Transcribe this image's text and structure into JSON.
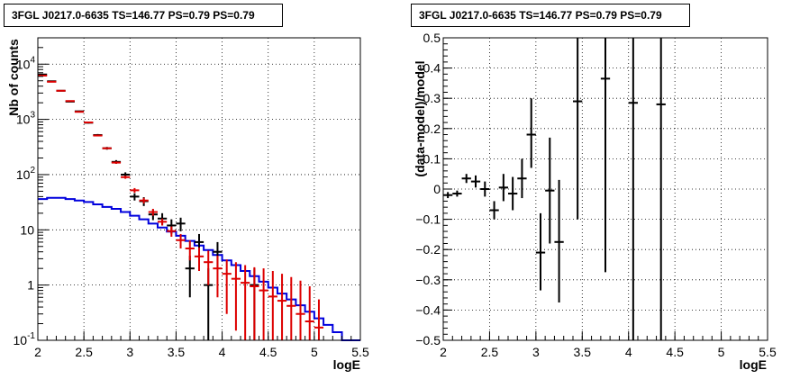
{
  "chart_data": [
    {
      "type": "line",
      "title": "3FGL J0217.0-6635 TS=146.77 PS=0.79 PS=0.79",
      "xlabel": "logE",
      "ylabel": "Nb of counts",
      "xlim": [
        2,
        5.5
      ],
      "ylim": [
        0.1,
        30000
      ],
      "yscale": "log",
      "grid": true,
      "x_ticks": [
        "2",
        "2.5",
        "3",
        "3.5",
        "4",
        "4.5",
        "5",
        "5.5"
      ],
      "y_ticks": [
        {
          "base": "10",
          "exp": "-1",
          "value": 0.1
        },
        {
          "base": "1",
          "exp": "",
          "value": 1
        },
        {
          "base": "10",
          "exp": "",
          "value": 10
        },
        {
          "base": "10",
          "exp": "2",
          "value": 100
        },
        {
          "base": "10",
          "exp": "3",
          "value": 1000
        },
        {
          "base": "10",
          "exp": "4",
          "value": 10000
        }
      ],
      "series": [
        {
          "role": "data",
          "color": "#000000",
          "points": [
            {
              "x": 2.05,
              "y": 6500,
              "lo": 6420,
              "hi": 6580
            },
            {
              "x": 2.15,
              "y": 4900,
              "lo": 4830,
              "hi": 4970
            },
            {
              "x": 2.25,
              "y": 3300,
              "lo": 3240,
              "hi": 3360
            },
            {
              "x": 2.35,
              "y": 2100,
              "lo": 2055,
              "hi": 2145
            },
            {
              "x": 2.45,
              "y": 1400,
              "lo": 1360,
              "hi": 1440
            },
            {
              "x": 2.55,
              "y": 870,
              "lo": 840,
              "hi": 900
            },
            {
              "x": 2.65,
              "y": 520,
              "lo": 497,
              "hi": 543
            },
            {
              "x": 2.75,
              "y": 300,
              "lo": 283,
              "hi": 317
            },
            {
              "x": 2.85,
              "y": 170,
              "lo": 157,
              "hi": 183
            },
            {
              "x": 2.95,
              "y": 100,
              "lo": 90,
              "hi": 110
            },
            {
              "x": 3.05,
              "y": 40,
              "lo": 34,
              "hi": 46
            },
            {
              "x": 3.15,
              "y": 33,
              "lo": 27,
              "hi": 39
            },
            {
              "x": 3.25,
              "y": 19,
              "lo": 15,
              "hi": 23
            },
            {
              "x": 3.35,
              "y": 16,
              "lo": 12,
              "hi": 20
            },
            {
              "x": 3.45,
              "y": 12,
              "lo": 8.5,
              "hi": 15.5
            },
            {
              "x": 3.55,
              "y": 13,
              "lo": 9.4,
              "hi": 16.6
            },
            {
              "x": 3.65,
              "y": 2,
              "lo": 0.6,
              "hi": 3.4
            },
            {
              "x": 3.75,
              "y": 6,
              "lo": 3.6,
              "hi": 8.4
            },
            {
              "x": 3.85,
              "y": 1,
              "lo": 0.1,
              "hi": 2
            },
            {
              "x": 3.95,
              "y": 4,
              "lo": 2,
              "hi": 6
            },
            {
              "x": 4.35,
              "y": 1,
              "lo": 0.1,
              "hi": 2
            }
          ]
        },
        {
          "role": "model",
          "color": "#dd0000",
          "points": [
            {
              "x": 2.05,
              "y": 6200,
              "lo": 6100,
              "hi": 6300
            },
            {
              "x": 2.15,
              "y": 4800,
              "lo": 4720,
              "hi": 4880
            },
            {
              "x": 2.25,
              "y": 3300,
              "lo": 3250,
              "hi": 3350
            },
            {
              "x": 2.35,
              "y": 2150,
              "lo": 2110,
              "hi": 2190
            },
            {
              "x": 2.45,
              "y": 1370,
              "lo": 1340,
              "hi": 1400
            },
            {
              "x": 2.55,
              "y": 880,
              "lo": 860,
              "hi": 900
            },
            {
              "x": 2.65,
              "y": 510,
              "lo": 495,
              "hi": 525
            },
            {
              "x": 2.75,
              "y": 300,
              "lo": 290,
              "hi": 310
            },
            {
              "x": 2.85,
              "y": 165,
              "lo": 157,
              "hi": 173
            },
            {
              "x": 2.95,
              "y": 90,
              "lo": 84,
              "hi": 96
            },
            {
              "x": 3.05,
              "y": 52,
              "lo": 47,
              "hi": 57
            },
            {
              "x": 3.15,
              "y": 34,
              "lo": 30,
              "hi": 38
            },
            {
              "x": 3.25,
              "y": 21,
              "lo": 18,
              "hi": 24
            },
            {
              "x": 3.35,
              "y": 14,
              "lo": 12,
              "hi": 16
            },
            {
              "x": 3.45,
              "y": 9.5,
              "lo": 7.5,
              "hi": 11.5
            },
            {
              "x": 3.55,
              "y": 6.5,
              "lo": 4.6,
              "hi": 8.4
            },
            {
              "x": 3.65,
              "y": 4.6,
              "lo": 2.8,
              "hi": 6.4
            },
            {
              "x": 3.75,
              "y": 3.3,
              "lo": 1.8,
              "hi": 4.8
            },
            {
              "x": 3.85,
              "y": 2.6,
              "lo": 1,
              "hi": 4.2
            },
            {
              "x": 3.95,
              "y": 2,
              "lo": 0.6,
              "hi": 3.4
            },
            {
              "x": 4.05,
              "y": 1.6,
              "lo": 0.3,
              "hi": 2.9
            },
            {
              "x": 4.15,
              "y": 1.3,
              "lo": 0.15,
              "hi": 2.6
            },
            {
              "x": 4.25,
              "y": 1.1,
              "lo": 0.1,
              "hi": 2.3
            },
            {
              "x": 4.35,
              "y": 0.95,
              "lo": 0.1,
              "hi": 2.1
            },
            {
              "x": 4.45,
              "y": 0.8,
              "lo": 0.1,
              "hi": 2
            },
            {
              "x": 4.55,
              "y": 0.62,
              "lo": 0.1,
              "hi": 1.8
            },
            {
              "x": 4.65,
              "y": 0.52,
              "lo": 0.1,
              "hi": 1.6
            },
            {
              "x": 4.75,
              "y": 0.42,
              "lo": 0.1,
              "hi": 1.4
            },
            {
              "x": 4.85,
              "y": 0.3,
              "lo": 0.1,
              "hi": 1.2
            },
            {
              "x": 4.95,
              "y": 0.22,
              "lo": 0.1,
              "hi": 0.95
            },
            {
              "x": 5.05,
              "y": 0.17,
              "lo": 0.1,
              "hi": 0.55
            }
          ]
        },
        {
          "role": "step",
          "color": "#0000dd",
          "edges": [
            2,
            2.1,
            2.2,
            2.3,
            2.4,
            2.5,
            2.6,
            2.7,
            2.8,
            2.9,
            3,
            3.1,
            3.2,
            3.3,
            3.4,
            3.5,
            3.6,
            3.7,
            3.8,
            3.9,
            4,
            4.1,
            4.2,
            4.3,
            4.4,
            4.5,
            4.6,
            4.7,
            4.8,
            4.9,
            5,
            5.1,
            5.2,
            5.3,
            5.4,
            5.5
          ],
          "values": [
            36,
            38,
            38,
            36,
            34,
            32,
            29,
            26,
            24,
            21,
            18,
            15.5,
            13,
            11,
            9.3,
            7.8,
            6.3,
            5.2,
            4.3,
            3.5,
            2.8,
            2.3,
            1.8,
            1.45,
            1.15,
            0.9,
            0.7,
            0.55,
            0.43,
            0.33,
            0.25,
            0.19,
            0.14,
            0.1,
            0.1
          ]
        }
      ]
    },
    {
      "type": "scatter",
      "title": "3FGL J0217.0-6635 TS=146.77 PS=0.79 PS=0.79",
      "xlabel": "logE",
      "ylabel": "(data-model)/model",
      "xlim": [
        2,
        5.5
      ],
      "ylim": [
        -0.5,
        0.5
      ],
      "grid": true,
      "x_ticks": [
        "2",
        "2.5",
        "3",
        "3.5",
        "4",
        "4.5",
        "5",
        "5.5"
      ],
      "y_ticks": [
        "−0.5",
        "−0.4",
        "−0.3",
        "−0.2",
        "−0.1",
        "0",
        "0.1",
        "0.2",
        "0.3",
        "0.4",
        "0.5"
      ],
      "series": [
        {
          "role": "residual",
          "color": "#000000",
          "points": [
            {
              "x": 2.05,
              "y": -0.02,
              "lo": -0.03,
              "hi": -0.01
            },
            {
              "x": 2.15,
              "y": -0.015,
              "lo": -0.025,
              "hi": -0.005
            },
            {
              "x": 2.25,
              "y": 0.035,
              "lo": 0.02,
              "hi": 0.05
            },
            {
              "x": 2.35,
              "y": 0.025,
              "lo": 0.005,
              "hi": 0.045
            },
            {
              "x": 2.45,
              "y": 0.0,
              "lo": -0.025,
              "hi": 0.025
            },
            {
              "x": 2.55,
              "y": -0.07,
              "lo": -0.1,
              "hi": -0.04
            },
            {
              "x": 2.65,
              "y": 0.005,
              "lo": -0.04,
              "hi": 0.05
            },
            {
              "x": 2.75,
              "y": -0.015,
              "lo": -0.07,
              "hi": 0.04
            },
            {
              "x": 2.85,
              "y": 0.035,
              "lo": -0.03,
              "hi": 0.1
            },
            {
              "x": 2.95,
              "y": 0.18,
              "lo": 0.07,
              "hi": 0.3
            },
            {
              "x": 3.05,
              "y": -0.21,
              "lo": -0.335,
              "hi": -0.08
            },
            {
              "x": 3.15,
              "y": -0.005,
              "lo": -0.18,
              "hi": 0.17
            },
            {
              "x": 3.25,
              "y": -0.175,
              "lo": -0.375,
              "hi": 0.03
            },
            {
              "x": 3.45,
              "y": 0.29,
              "lo": -0.1,
              "hi": 0.5
            },
            {
              "x": 3.75,
              "y": 0.365,
              "lo": -0.275,
              "hi": 0.5
            },
            {
              "x": 4.05,
              "y": 0.285,
              "lo": -0.5,
              "hi": 0.5
            },
            {
              "x": 4.35,
              "y": 0.28,
              "lo": -0.5,
              "hi": 0.5
            }
          ]
        }
      ]
    }
  ]
}
